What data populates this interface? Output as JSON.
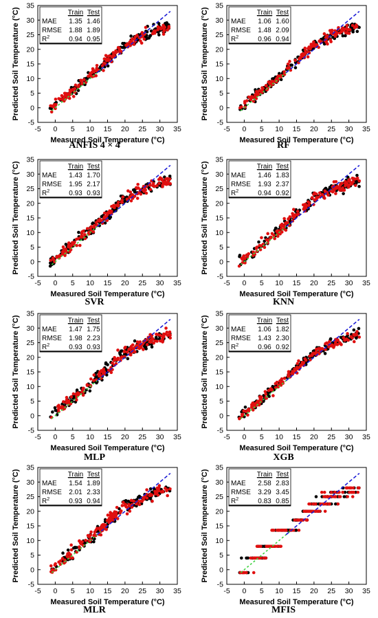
{
  "colors": {
    "train": "#000000",
    "test": "#e01010",
    "line_fit": "#1b1bd6",
    "line_ideal": "#3fd13f"
  },
  "axes": {
    "xlabel": "Measured Soil Temperature (°C)",
    "ylabel": "Predicted Soil Temperature (°C)",
    "xlim": [
      -5,
      35
    ],
    "ylim": [
      -5,
      35
    ],
    "xticks": [
      "-5",
      "0",
      "5",
      "10",
      "15",
      "20",
      "25",
      "30",
      "35"
    ],
    "yticks": [
      "-5",
      "0",
      "5",
      "10",
      "15",
      "20",
      "25",
      "30",
      "35"
    ]
  },
  "table_headers": {
    "train": "Train",
    "test": "Test",
    "mae": "MAE",
    "rmse": "RMSE",
    "r2": "R",
    "r2_sup": "2"
  },
  "chart_data": [
    {
      "type": "scatter",
      "name": "ANFIS 4 × 4",
      "metrics": {
        "mae": [
          "1.35",
          "1.46"
        ],
        "rmse": [
          "1.88",
          "1.89"
        ],
        "r2": [
          "0.94",
          "0.95"
        ]
      }
    },
    {
      "type": "scatter",
      "name": "RF",
      "metrics": {
        "mae": [
          "1.06",
          "1.60"
        ],
        "rmse": [
          "1.48",
          "2.09"
        ],
        "r2": [
          "0.96",
          "0.94"
        ]
      }
    },
    {
      "type": "scatter",
      "name": "SVR",
      "metrics": {
        "mae": [
          "1.43",
          "1.70"
        ],
        "rmse": [
          "1.95",
          "2.17"
        ],
        "r2": [
          "0.93",
          "0.93"
        ]
      }
    },
    {
      "type": "scatter",
      "name": "KNN",
      "metrics": {
        "mae": [
          "1.46",
          "1.83"
        ],
        "rmse": [
          "1.93",
          "2.37"
        ],
        "r2": [
          "0.94",
          "0.92"
        ]
      }
    },
    {
      "type": "scatter",
      "name": "MLP",
      "metrics": {
        "mae": [
          "1.47",
          "1.75"
        ],
        "rmse": [
          "1.98",
          "2.23"
        ],
        "r2": [
          "0.93",
          "0.93"
        ]
      }
    },
    {
      "type": "scatter",
      "name": "XGB",
      "metrics": {
        "mae": [
          "1.06",
          "1.82"
        ],
        "rmse": [
          "1.43",
          "2.30"
        ],
        "r2": [
          "0.96",
          "0.92"
        ]
      }
    },
    {
      "type": "scatter",
      "name": "MLR",
      "metrics": {
        "mae": [
          "1.54",
          "1.89"
        ],
        "rmse": [
          "2.01",
          "2.33"
        ],
        "r2": [
          "0.93",
          "0.94"
        ]
      }
    },
    {
      "type": "scatter",
      "name": "MFIS",
      "metrics": {
        "mae": [
          "2.58",
          "2.83"
        ],
        "rmse": [
          "3.29",
          "3.45"
        ],
        "r2": [
          "0.83",
          "0.85"
        ]
      }
    }
  ]
}
